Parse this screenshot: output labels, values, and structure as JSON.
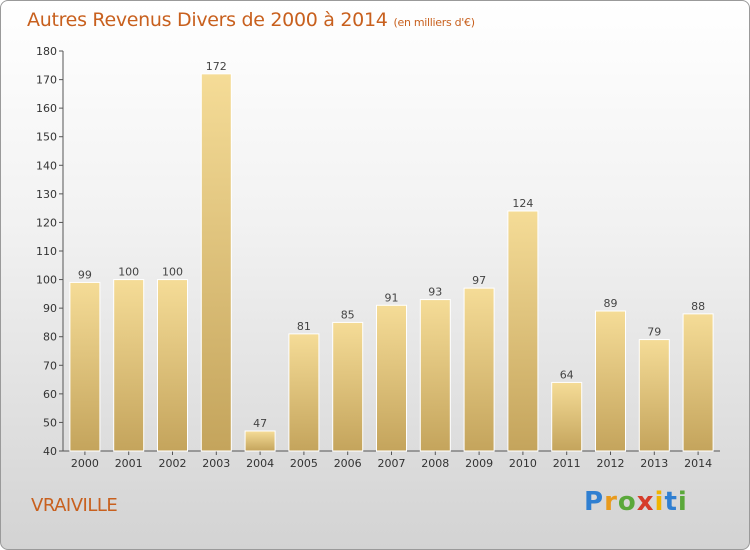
{
  "title": "Autres Revenus Divers de 2000 à 2014",
  "subtitle": "(en milliers d'€)",
  "town": "VRAIVILLE",
  "logo": "Proxiti",
  "colors": {
    "title": "#c8601e",
    "bar_top": "#f5dc97",
    "bar_bottom": "#c4a45c"
  },
  "chart_data": {
    "type": "bar",
    "title": "Autres Revenus Divers de 2000 à 2014",
    "subtitle": "(en milliers d'€)",
    "xlabel": "",
    "ylabel": "",
    "categories": [
      "2000",
      "2001",
      "2002",
      "2003",
      "2004",
      "2005",
      "2006",
      "2007",
      "2008",
      "2009",
      "2010",
      "2011",
      "2012",
      "2013",
      "2014"
    ],
    "values": [
      99,
      100,
      100,
      172,
      47,
      81,
      85,
      91,
      93,
      97,
      124,
      64,
      89,
      79,
      88
    ],
    "ylim": [
      40,
      180
    ],
    "yticks": [
      40,
      50,
      60,
      70,
      80,
      90,
      100,
      110,
      120,
      130,
      140,
      150,
      160,
      170,
      180
    ],
    "grid": false,
    "legend": "none"
  }
}
